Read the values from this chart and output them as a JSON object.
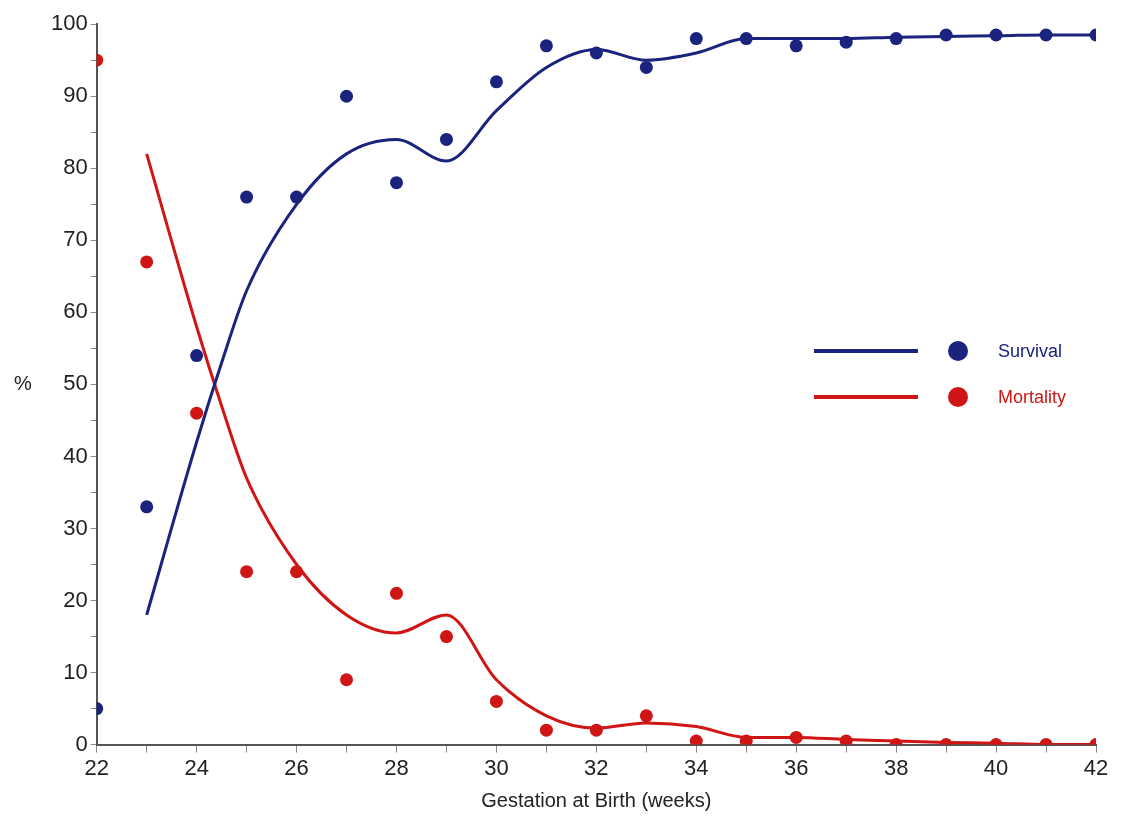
{
  "chart_data": {
    "type": "scatter",
    "xlabel": "Gestation at Birth (weeks)",
    "ylabel": "%",
    "xlim": [
      22,
      42
    ],
    "xticks": [
      22,
      {
        "value": 23,
        "label": null
      },
      24,
      {
        "value": 25,
        "label": null
      },
      26,
      {
        "value": 27,
        "label": null
      },
      28,
      {
        "value": 29,
        "label": null
      },
      30,
      {
        "value": 31,
        "label": null
      },
      32,
      {
        "value": 33,
        "label": null
      },
      34,
      {
        "value": 35,
        "label": null
      },
      36,
      {
        "value": 37,
        "label": null
      },
      38,
      {
        "value": 39,
        "label": null
      },
      40,
      {
        "value": 41,
        "label": null
      },
      42
    ],
    "ylim": [
      0,
      100
    ],
    "yticks": [
      0,
      {
        "value": 5,
        "label": null
      },
      10,
      {
        "value": 15,
        "label": null
      },
      20,
      {
        "value": 25,
        "label": null
      },
      30,
      {
        "value": 35,
        "label": null
      },
      40,
      {
        "value": 45,
        "label": null
      },
      50,
      {
        "value": 55,
        "label": null
      },
      60,
      {
        "value": 65,
        "label": null
      },
      70,
      {
        "value": 75,
        "label": null
      },
      80,
      {
        "value": 85,
        "label": null
      },
      90,
      {
        "value": 95,
        "label": null
      },
      100
    ],
    "grid": false,
    "legend": "right",
    "marker": "circle",
    "x": [
      22,
      23,
      24,
      25,
      26,
      27,
      28,
      29,
      30,
      31,
      32,
      33,
      34,
      35,
      36,
      37,
      38,
      39,
      40,
      41,
      42
    ],
    "series": [
      {
        "name": "Survival",
        "color": "#1a237e",
        "values": [
          5,
          33,
          54,
          76,
          76,
          90,
          78,
          84,
          92,
          97,
          96,
          94,
          98,
          98,
          97,
          97.5,
          98,
          98.5,
          98.5,
          98.5,
          98.5
        ]
      },
      {
        "name": "Mortality",
        "color": "#d01515",
        "values": [
          95,
          67,
          46,
          24,
          24,
          9,
          21,
          15,
          6,
          2,
          2,
          4,
          0.5,
          0.5,
          1,
          0.5,
          0,
          0,
          0,
          0,
          0
        ]
      },
      {
        "type": "line",
        "color": "#1a237e",
        "marker": "none",
        "x": [
          23,
          24,
          24.5,
          25,
          26,
          27,
          28,
          29,
          30,
          31,
          32,
          33,
          34,
          35,
          36,
          37,
          38,
          39,
          40,
          41,
          42
        ],
        "values": [
          18,
          42,
          53,
          63,
          75,
          82,
          84,
          81,
          88,
          94,
          96.5,
          95,
          96,
          98,
          98,
          98,
          98.2,
          98.3,
          98.4,
          98.5,
          98.5
        ]
      },
      {
        "type": "line",
        "color": "#d01515",
        "marker": "none",
        "x": [
          23,
          24,
          24.5,
          25,
          26,
          27,
          28,
          29,
          30,
          31,
          32,
          33,
          34,
          35,
          36,
          37,
          38,
          39,
          40,
          41,
          42
        ],
        "values": [
          82,
          58,
          47,
          37,
          25,
          18,
          15.5,
          18,
          9,
          4,
          2.3,
          3,
          2.5,
          1,
          1,
          0.7,
          0.5,
          0.3,
          0.2,
          0,
          0
        ]
      }
    ]
  }
}
